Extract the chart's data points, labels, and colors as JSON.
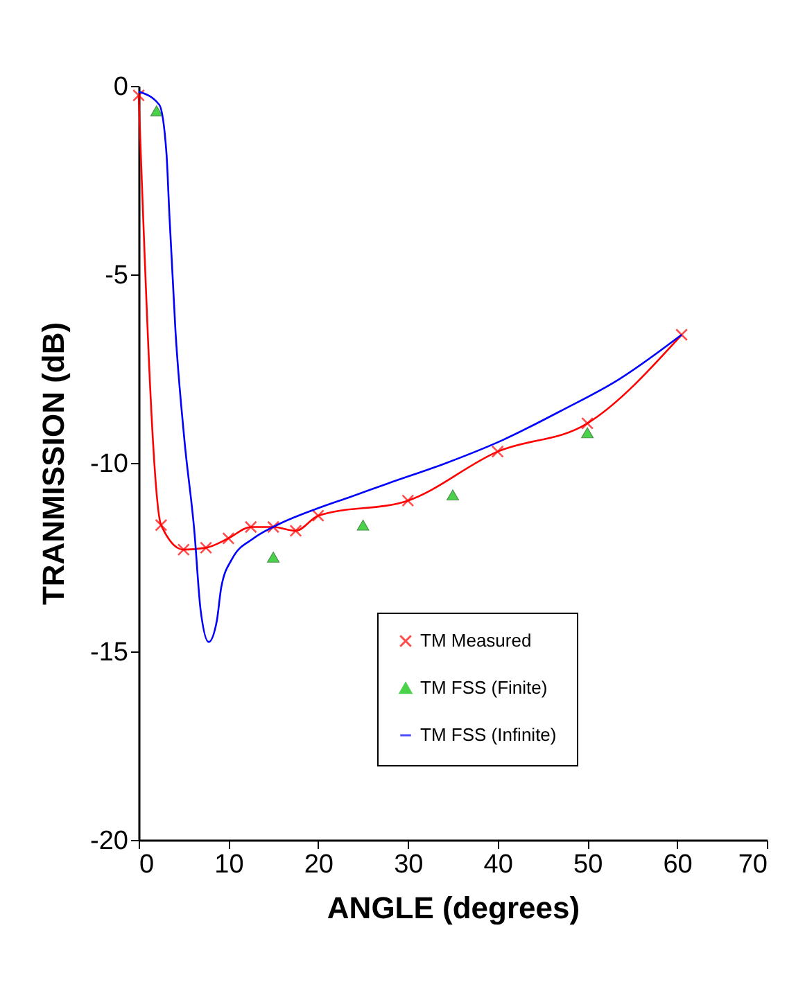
{
  "chart_data": {
    "type": "line",
    "xlabel": "ANGLE (degrees)",
    "ylabel": "TRANMISSION (dB)",
    "xlim": [
      0,
      70
    ],
    "xticks": [
      0,
      10,
      20,
      30,
      40,
      50,
      60,
      70
    ],
    "ylim": [
      -20,
      0
    ],
    "yticks": [
      -20,
      -15,
      -10,
      -5,
      0
    ],
    "grid": false,
    "legend": "bottom right",
    "series": [
      {
        "name": "TM Measured",
        "color": "#ff0000",
        "marker": "cross",
        "x": [
          0,
          2.5,
          5,
          7.5,
          10,
          12.5,
          15,
          17.5,
          20,
          30,
          40,
          50,
          60.5
        ],
        "values": [
          -0.25,
          -11.65,
          -12.3,
          -12.25,
          -12.0,
          -11.7,
          -11.7,
          -11.8,
          -11.4,
          -11.0,
          -9.7,
          -8.95,
          -6.6
        ]
      },
      {
        "name": "TM FSS (Finite)",
        "type": "scatter",
        "color": "#00c000",
        "marker": "triangle",
        "x": [
          2,
          15,
          25,
          35,
          50
        ],
        "values": [
          -0.66,
          -12.5,
          -11.65,
          -10.85,
          -9.2
        ]
      },
      {
        "name": "TM FSS (Infinite)",
        "color": "#0000ff",
        "marker": "none",
        "x": [
          0,
          2.3,
          3.1,
          3.4,
          4.1,
          5.1,
          6.2,
          6.9,
          7.8,
          8.7,
          9.2,
          10.4,
          12.8,
          15.4,
          20,
          23.6,
          27.7,
          34.3,
          40.5,
          47.2,
          53.4,
          60.5
        ],
        "values": [
          -0.15,
          -0.5,
          -1.8,
          -3.3,
          -6.5,
          -9.4,
          -11.8,
          -13.9,
          -14.75,
          -14.2,
          -13.3,
          -12.55,
          -12.0,
          -11.65,
          -11.2,
          -10.9,
          -10.55,
          -10.0,
          -9.4,
          -8.6,
          -7.8,
          -6.6
        ]
      }
    ]
  }
}
